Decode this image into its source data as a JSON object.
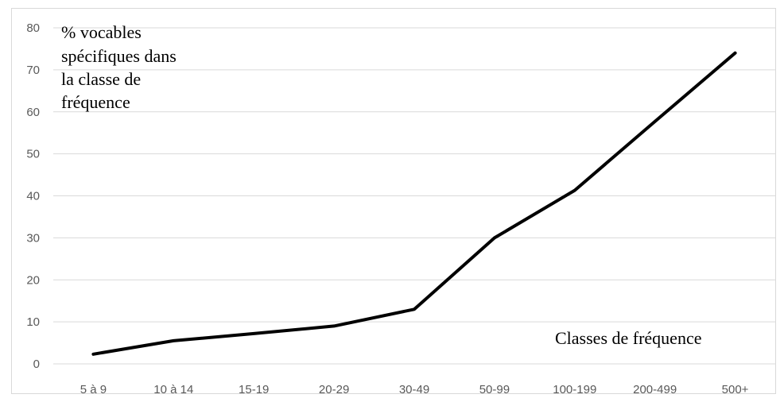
{
  "chart_data": {
    "type": "line",
    "categories": [
      "5 à 9",
      "10 à 14",
      "15-19",
      "20-29",
      "30-49",
      "50-99",
      "100-199",
      "200-499",
      "500+"
    ],
    "series": [
      {
        "values": [
          2.3,
          5.5,
          7.2,
          9,
          13,
          30,
          41.3,
          57.7,
          74
        ]
      }
    ],
    "ylabel_lines": [
      "% vocables",
      "spécifiques dans",
      "la classe de",
      "fréquence"
    ],
    "xlabel": "Classes de fréquence",
    "ylim": [
      0,
      80
    ],
    "yticks": [
      "0",
      "10",
      "20",
      "30",
      "40",
      "50",
      "60",
      "70",
      "80"
    ],
    "grid": true,
    "line_color": "#000000"
  }
}
